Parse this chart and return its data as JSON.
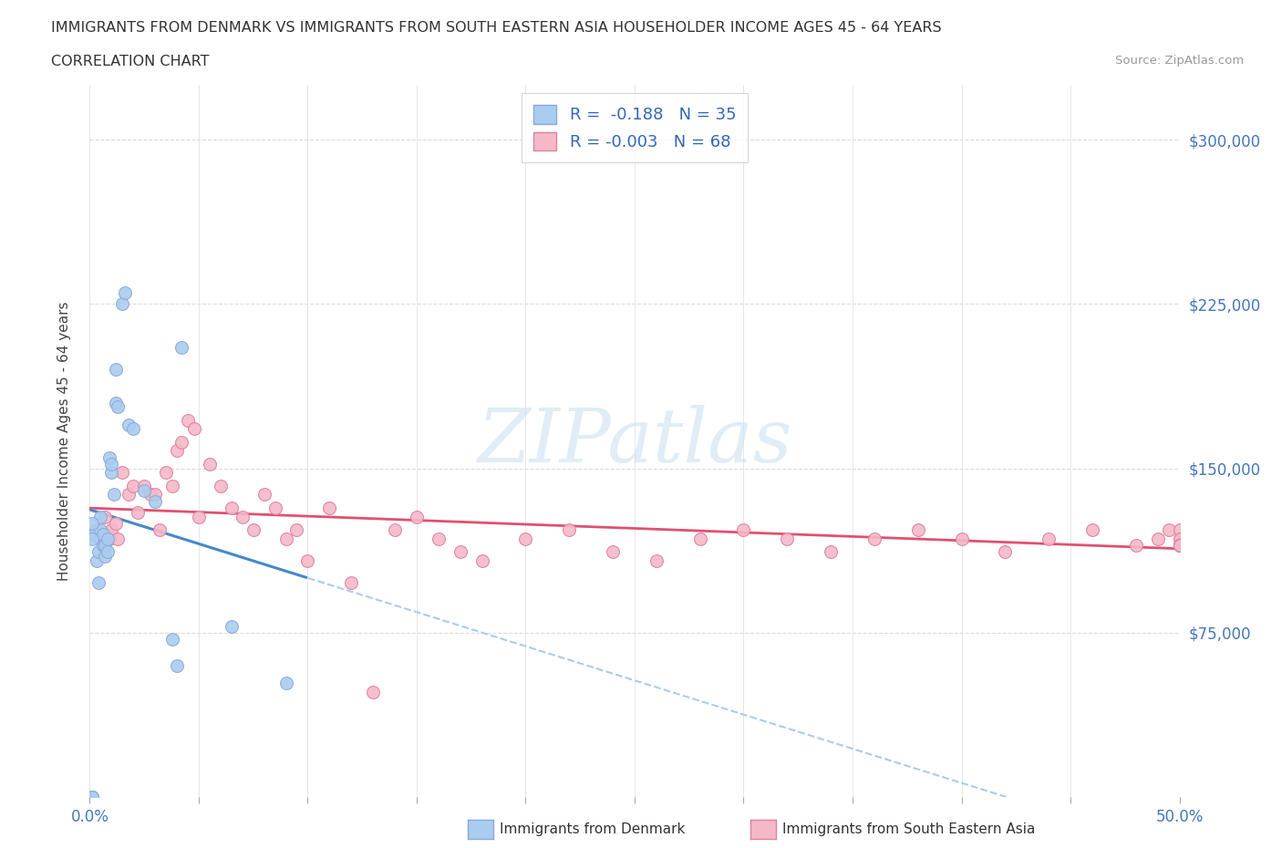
{
  "title_line1": "IMMIGRANTS FROM DENMARK VS IMMIGRANTS FROM SOUTH EASTERN ASIA HOUSEHOLDER INCOME AGES 45 - 64 YEARS",
  "title_line2": "CORRELATION CHART",
  "source_text": "Source: ZipAtlas.com",
  "ylabel": "Householder Income Ages 45 - 64 years",
  "xlim": [
    0.0,
    0.5
  ],
  "ylim": [
    0,
    325000
  ],
  "xticks": [
    0.0,
    0.05,
    0.1,
    0.15,
    0.2,
    0.25,
    0.3,
    0.35,
    0.4,
    0.45,
    0.5
  ],
  "yticks": [
    0,
    75000,
    150000,
    225000,
    300000
  ],
  "grid_color": "#dddddd",
  "background_color": "#ffffff",
  "denmark_color": "#aaccee",
  "denmark_edge_color": "#88aadd",
  "sea_color": "#f4b8c8",
  "sea_edge_color": "#e080a0",
  "denmark_line_color": "#4488cc",
  "sea_line_color": "#e05070",
  "legend_label1": "R =  -0.188   N = 35",
  "legend_label2": "R = -0.003   N = 68",
  "watermark_text": "ZIPatlas",
  "denmark_x": [
    0.001,
    0.001,
    0.002,
    0.003,
    0.004,
    0.004,
    0.005,
    0.005,
    0.005,
    0.006,
    0.006,
    0.007,
    0.007,
    0.008,
    0.008,
    0.009,
    0.01,
    0.01,
    0.011,
    0.012,
    0.012,
    0.013,
    0.015,
    0.016,
    0.018,
    0.02,
    0.025,
    0.03,
    0.038,
    0.04,
    0.042,
    0.065,
    0.09,
    0.001,
    0.001
  ],
  "denmark_y": [
    0,
    0,
    120000,
    108000,
    98000,
    112000,
    128000,
    122000,
    118000,
    115000,
    120000,
    110000,
    115000,
    112000,
    118000,
    155000,
    148000,
    152000,
    138000,
    195000,
    180000,
    178000,
    225000,
    230000,
    170000,
    168000,
    140000,
    135000,
    72000,
    60000,
    205000,
    78000,
    52000,
    125000,
    118000
  ],
  "sea_x": [
    0.003,
    0.005,
    0.007,
    0.008,
    0.009,
    0.01,
    0.012,
    0.013,
    0.015,
    0.018,
    0.02,
    0.022,
    0.025,
    0.028,
    0.03,
    0.032,
    0.035,
    0.038,
    0.04,
    0.042,
    0.045,
    0.048,
    0.05,
    0.055,
    0.06,
    0.065,
    0.07,
    0.075,
    0.08,
    0.085,
    0.09,
    0.095,
    0.1,
    0.11,
    0.12,
    0.13,
    0.14,
    0.15,
    0.16,
    0.17,
    0.18,
    0.2,
    0.22,
    0.24,
    0.26,
    0.28,
    0.3,
    0.32,
    0.34,
    0.36,
    0.38,
    0.4,
    0.42,
    0.44,
    0.46,
    0.48,
    0.49,
    0.495,
    0.5,
    0.5,
    0.5,
    0.5,
    0.5,
    0.5,
    0.5,
    0.5,
    0.5,
    0.5
  ],
  "sea_y": [
    122000,
    118000,
    128000,
    120000,
    118000,
    122000,
    125000,
    118000,
    148000,
    138000,
    142000,
    130000,
    142000,
    138000,
    138000,
    122000,
    148000,
    142000,
    158000,
    162000,
    172000,
    168000,
    128000,
    152000,
    142000,
    132000,
    128000,
    122000,
    138000,
    132000,
    118000,
    122000,
    108000,
    132000,
    98000,
    48000,
    122000,
    128000,
    118000,
    112000,
    108000,
    118000,
    122000,
    112000,
    108000,
    118000,
    122000,
    118000,
    112000,
    118000,
    122000,
    118000,
    112000,
    118000,
    122000,
    115000,
    118000,
    122000,
    118000,
    115000,
    122000,
    118000,
    115000,
    115000,
    115000,
    115000,
    115000,
    115000
  ]
}
